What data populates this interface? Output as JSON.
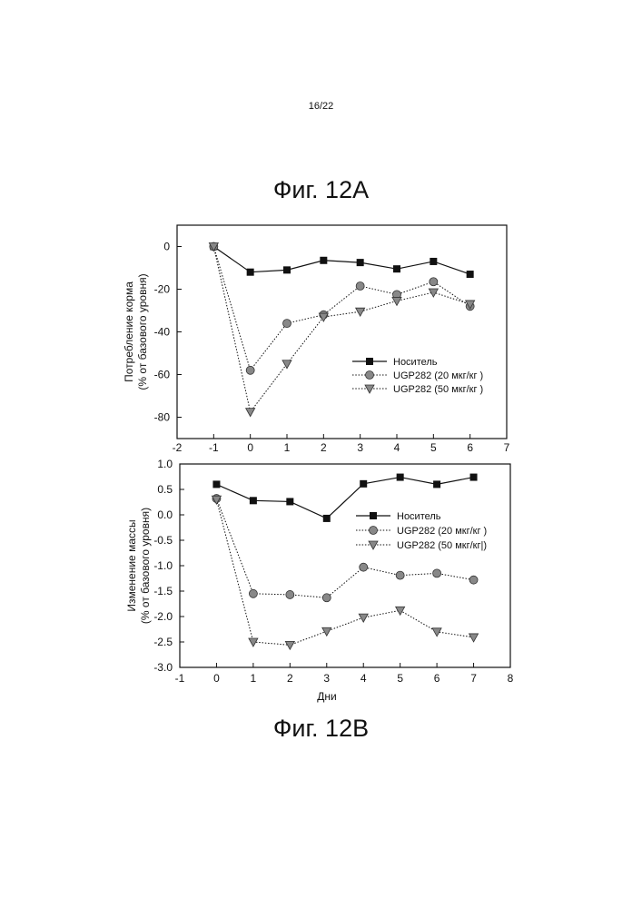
{
  "page_number": "16/22",
  "figure_a_title": "Фиг. 12A",
  "figure_b_title": "Фиг. 12B",
  "colors": {
    "ink": "#111111",
    "marker_gray": "#888888"
  },
  "chart_data": [
    {
      "type": "line",
      "title": "",
      "xlabel": "",
      "ylabel_lines": [
        "Потребление корма",
        "(% от базового уровня)"
      ],
      "xlim": [
        -2,
        7
      ],
      "ylim": [
        -90,
        10
      ],
      "xticks": [
        -2,
        -1,
        0,
        1,
        2,
        3,
        4,
        5,
        6,
        7
      ],
      "yticks": [
        0,
        -20,
        -40,
        -60,
        -80
      ],
      "legend_position": "center-right",
      "series": [
        {
          "name": "Носитель",
          "marker": "square",
          "line": "solid",
          "x": [
            -1,
            0,
            1,
            2,
            3,
            4,
            5,
            6
          ],
          "values": [
            0,
            -12,
            -11,
            -6.5,
            -7.5,
            -10.5,
            -7,
            -13
          ]
        },
        {
          "name": "UGP282 (20 мкг/кг )",
          "marker": "circle",
          "line": "dotted",
          "x": [
            -1,
            0,
            1,
            2,
            3,
            4,
            5,
            6
          ],
          "values": [
            0,
            -58,
            -36,
            -32,
            -18.5,
            -22.5,
            -16.5,
            -28
          ]
        },
        {
          "name": "UGP282 (50 мкг/кг )",
          "marker": "triangle-down",
          "line": "dotted",
          "x": [
            -1,
            0,
            1,
            2,
            3,
            4,
            5,
            6
          ],
          "values": [
            0,
            -77.5,
            -55,
            -33,
            -30.5,
            -25.5,
            -21.5,
            -27
          ]
        }
      ]
    },
    {
      "type": "line",
      "title": "",
      "xlabel": "Дни",
      "ylabel_lines": [
        "Изменение массы",
        "(% от базового уровня)"
      ],
      "xlim": [
        -1,
        8
      ],
      "ylim": [
        -3.0,
        1.0
      ],
      "xticks": [
        -1,
        0,
        1,
        2,
        3,
        4,
        5,
        6,
        7,
        8
      ],
      "yticks": [
        1.0,
        0.5,
        0.0,
        -0.5,
        -1.0,
        -1.5,
        -2.0,
        -2.5,
        -3.0
      ],
      "legend_position": "center-right",
      "series": [
        {
          "name": "Носитель",
          "marker": "square",
          "line": "solid",
          "x": [
            0,
            1,
            2,
            3,
            4,
            5,
            6,
            7
          ],
          "values": [
            0.6,
            0.28,
            0.26,
            -0.07,
            0.61,
            0.74,
            0.6,
            0.74
          ]
        },
        {
          "name": "UGP282 (20 мкг/кг )",
          "marker": "circle",
          "line": "dotted",
          "x": [
            0,
            1,
            2,
            3,
            4,
            5,
            6,
            7
          ],
          "values": [
            0.32,
            -1.55,
            -1.57,
            -1.63,
            -1.03,
            -1.19,
            -1.15,
            -1.28
          ]
        },
        {
          "name": "UGP282 (50 мкг/кг|)",
          "marker": "triangle-down",
          "line": "dotted",
          "x": [
            0,
            1,
            2,
            3,
            4,
            5,
            6,
            7
          ],
          "values": [
            0.3,
            -2.5,
            -2.56,
            -2.29,
            -2.02,
            -1.88,
            -2.3,
            -2.41
          ]
        }
      ]
    }
  ]
}
